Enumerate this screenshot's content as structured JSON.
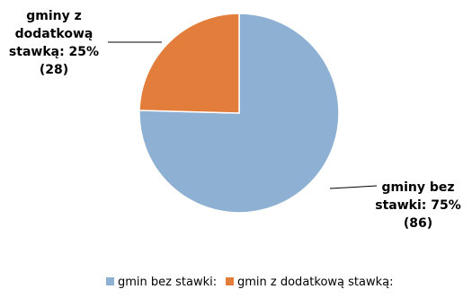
{
  "chart_data": {
    "type": "pie",
    "title": "",
    "slices": [
      {
        "label": "gmin bez stawki:",
        "value": 86,
        "percent": 75,
        "color": "#8EB1D3",
        "data_label_lines": [
          "gminy bez",
          "stawki: 75%",
          "(86)"
        ]
      },
      {
        "label": "gmin z dodatkową stawką:",
        "value": 28,
        "percent": 25,
        "color": "#E37D3C",
        "data_label_lines": [
          "gminy z",
          "dodatkową",
          "stawką: 25%",
          "(28)"
        ]
      }
    ],
    "legend": {
      "position": "bottom",
      "entries": [
        "gmin bez stawki:",
        "gmin z dodatkową stawką:"
      ]
    }
  }
}
